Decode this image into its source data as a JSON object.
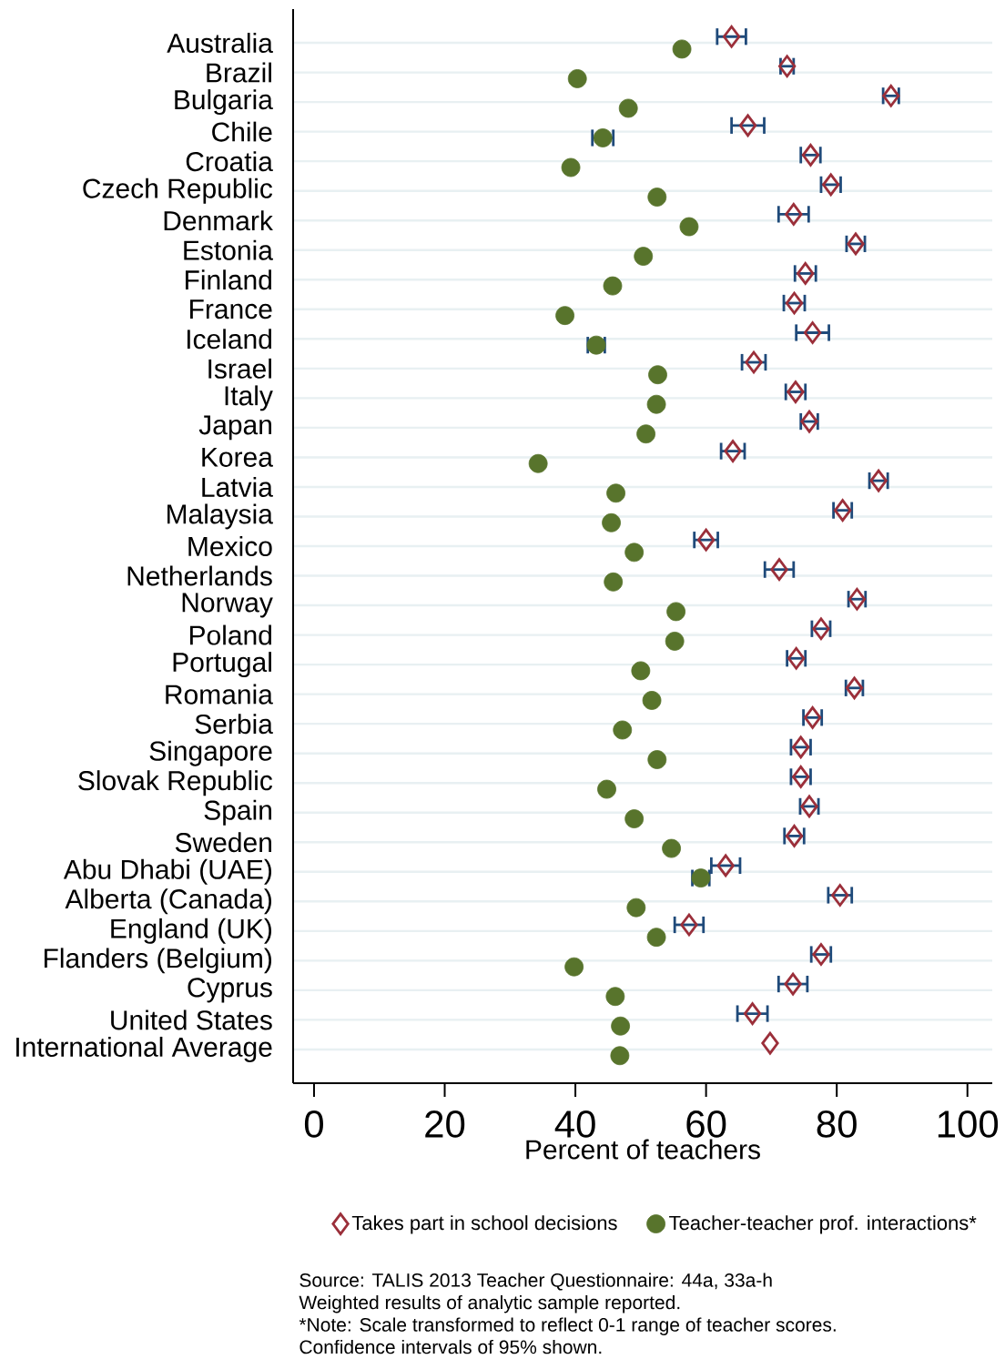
{
  "chart_data": {
    "type": "scatter",
    "orientation": "horizontal",
    "categories": [
      "Australia",
      "Brazil",
      "Bulgaria",
      "Chile",
      "Croatia",
      "Czech Republic",
      "Denmark",
      "Estonia",
      "Finland",
      "France",
      "Iceland",
      "Israel",
      "Italy",
      "Japan",
      "Korea",
      "Latvia",
      "Malaysia",
      "Mexico",
      "Netherlands",
      "Norway",
      "Poland",
      "Portugal",
      "Romania",
      "Serbia",
      "Singapore",
      "Slovak Republic",
      "Spain",
      "Sweden",
      "Abu Dhabi (UAE)",
      "Alberta (Canada)",
      "England (UK)",
      "Flanders (Belgium)",
      "Cyprus",
      "United States",
      "International Average"
    ],
    "series": [
      {
        "name": "Takes part in school decisions",
        "color": "#9b2f3a",
        "marker": "diamond",
        "values": [
          63.9,
          72.4,
          88.3,
          66.4,
          76.0,
          79.1,
          73.4,
          82.9,
          75.2,
          73.5,
          76.3,
          67.3,
          73.7,
          75.8,
          64.1,
          86.4,
          80.9,
          60.0,
          71.2,
          83.1,
          77.6,
          73.8,
          82.7,
          76.3,
          74.5,
          74.5,
          75.8,
          73.5,
          63.0,
          80.5,
          57.4,
          77.6,
          73.3,
          67.1,
          69.8
        ],
        "errors": [
          2.2,
          1.0,
          1.2,
          2.5,
          1.5,
          1.5,
          2.3,
          1.4,
          1.6,
          1.6,
          2.5,
          1.8,
          1.5,
          1.3,
          1.8,
          1.4,
          1.4,
          1.8,
          2.2,
          1.3,
          1.4,
          1.4,
          1.3,
          1.4,
          1.5,
          1.5,
          1.4,
          1.5,
          2.2,
          1.8,
          2.2,
          1.5,
          2.2,
          2.3,
          null
        ]
      },
      {
        "name": "Teacher-teacher prof. interactions*",
        "color": "#58742c",
        "marker": "circle",
        "values": [
          56.3,
          40.3,
          48.1,
          44.2,
          39.3,
          52.5,
          57.4,
          50.4,
          45.7,
          38.4,
          43.2,
          52.6,
          52.4,
          50.8,
          34.3,
          46.2,
          45.5,
          49.0,
          45.8,
          55.4,
          55.2,
          50.0,
          51.7,
          47.2,
          52.5,
          44.8,
          49.0,
          54.7,
          59.2,
          49.3,
          52.4,
          39.8,
          46.1,
          46.9,
          46.8
        ],
        "errors": [
          null,
          null,
          null,
          1.6,
          null,
          null,
          null,
          null,
          null,
          null,
          1.3,
          null,
          null,
          null,
          null,
          null,
          null,
          null,
          null,
          null,
          null,
          null,
          null,
          null,
          null,
          null,
          null,
          null,
          1.3,
          null,
          null,
          null,
          null,
          null,
          null
        ]
      }
    ],
    "xlabel": "Percent of teachers",
    "xlim": [
      -3.2,
      103.8
    ],
    "xticks": [
      0,
      20,
      40,
      60,
      80,
      100
    ],
    "grid": "y",
    "legend": "bottom",
    "annotations": [
      "Source: TALIS 2013 Teacher Questionnaire: 44a, 33a-h",
      "Weighted results of analytic sample reported.",
      "*Note: Scale transformed to reflect 0-1 range of teacher scores.",
      "Confidence intervals of 95% shown."
    ]
  }
}
